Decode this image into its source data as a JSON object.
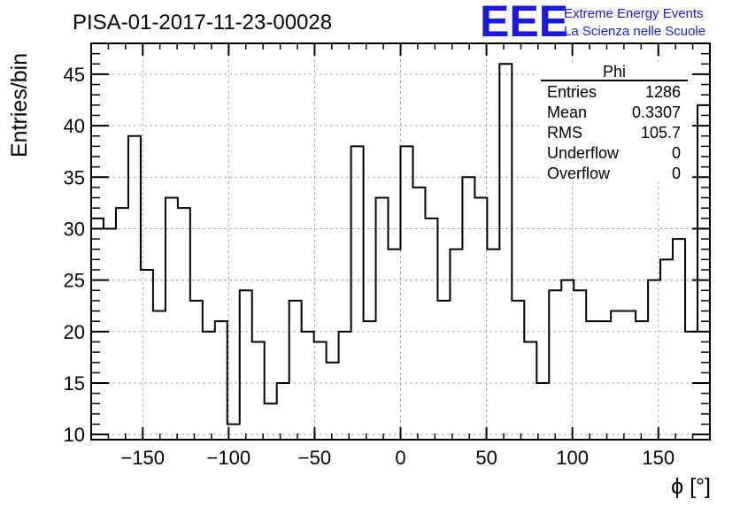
{
  "chart_data": {
    "type": "histogram",
    "title": "PISA-01-2017-11-23-00028",
    "xlabel": "ϕ [°]",
    "ylabel": "Entries/bin",
    "xlim": [
      -180,
      180
    ],
    "ylim": [
      9.5,
      48
    ],
    "bin_width": 7.2,
    "xticks": [
      -150,
      -100,
      -50,
      0,
      50,
      100,
      150
    ],
    "xtick_labels": [
      "−150",
      "−100",
      "−50",
      "0",
      "50",
      "100",
      "150"
    ],
    "yticks": [
      10,
      15,
      20,
      25,
      30,
      35,
      40,
      45
    ],
    "ytick_labels": [
      "10",
      "15",
      "20",
      "25",
      "30",
      "35",
      "40",
      "45"
    ],
    "grid": true,
    "values": [
      31,
      30,
      32,
      39,
      26,
      22,
      33,
      32,
      23,
      20,
      21,
      11,
      24,
      19,
      13,
      15,
      23,
      20,
      19,
      17,
      20,
      38,
      21,
      33,
      28,
      38,
      34,
      31,
      23,
      28,
      35,
      33,
      28,
      46,
      23,
      19,
      15,
      24,
      25,
      24,
      21,
      21,
      22,
      22,
      21,
      25,
      27,
      29,
      20,
      42
    ],
    "stats_box": {
      "name": "Phi",
      "rows": [
        {
          "label": "Entries",
          "value": "1286"
        },
        {
          "label": "Mean",
          "value": "0.3307"
        },
        {
          "label": "RMS",
          "value": "105.7"
        },
        {
          "label": "Underflow",
          "value": "0"
        },
        {
          "label": "Overflow",
          "value": "0"
        }
      ]
    }
  },
  "logo": {
    "mark": "EEE",
    "line1": "Extreme Energy Events",
    "line2": "La Scienza nelle Scuole",
    "color": "#1a1adf"
  },
  "colors": {
    "grid": "#aaaaaa",
    "line": "#000000"
  }
}
